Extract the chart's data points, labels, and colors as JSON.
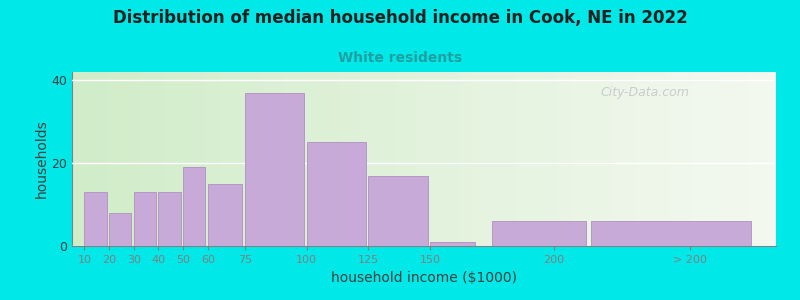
{
  "title": "Distribution of median household income in Cook, NE in 2022",
  "subtitle": "White residents",
  "xlabel": "household income ($1000)",
  "ylabel": "households",
  "background_outer": "#00e8e8",
  "background_inner_left": "#d0ecc8",
  "background_inner_right": "#f4f8f0",
  "bar_color": "#c8aad8",
  "bar_edge_color": "#b090c0",
  "title_color": "#202020",
  "subtitle_color": "#20a0a0",
  "watermark": "City-Data.com",
  "values": [
    13,
    8,
    13,
    13,
    19,
    15,
    37,
    25,
    17,
    1,
    6,
    6
  ],
  "bar_lefts": [
    10,
    20,
    30,
    40,
    50,
    60,
    75,
    100,
    125,
    150,
    175,
    215
  ],
  "bar_widths": [
    9,
    9,
    9,
    9,
    9,
    14,
    24,
    24,
    24,
    18,
    38,
    65
  ],
  "xtick_pos": [
    10,
    20,
    30,
    40,
    50,
    60,
    75,
    100,
    125,
    150,
    200,
    255
  ],
  "xtick_labels": [
    "10",
    "20",
    "30",
    "40",
    "50",
    "60",
    "75",
    "100",
    "125",
    "150",
    "200",
    "> 200"
  ],
  "xlim": [
    5,
    290
  ],
  "ylim": [
    0,
    42
  ],
  "yticks": [
    0,
    20,
    40
  ]
}
